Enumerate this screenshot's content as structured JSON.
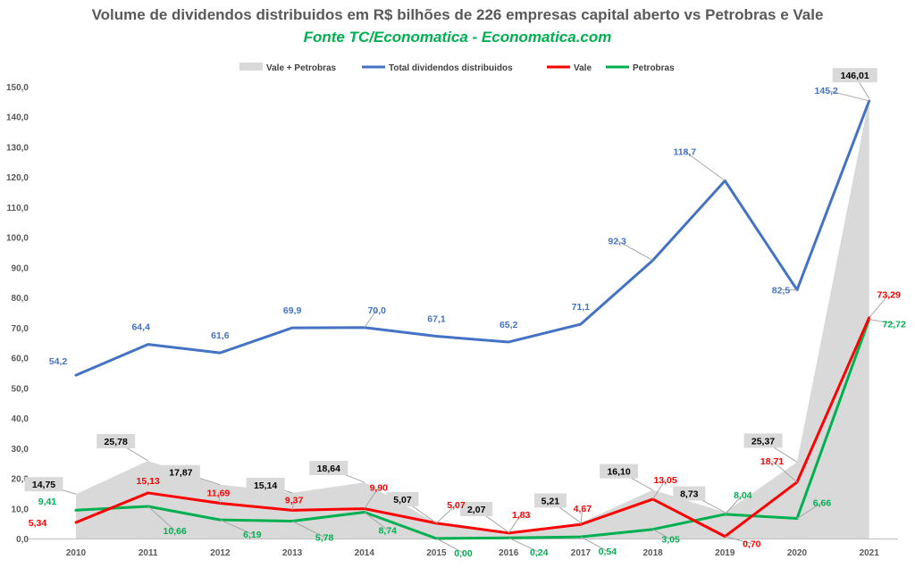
{
  "title": "Volume de dividendos distribuidos em R$ bilhões de 226 empresas capital aberto vs Petrobras e Vale",
  "subtitle": "Fonte TC/Economatica - Economatica.com",
  "colors": {
    "vale_petrobras": "#d9d9d9",
    "total": "#4472c4",
    "vale": "#ff0000",
    "petrobras": "#00b050"
  },
  "chart_data": {
    "type": "line",
    "x": [
      "2010",
      "2011",
      "2012",
      "2013",
      "2014",
      "2015",
      "2016",
      "2017",
      "2018",
      "2019",
      "2020",
      "2021"
    ],
    "y_ticks": [
      "0,0",
      "10,0",
      "20,0",
      "30,0",
      "40,0",
      "50,0",
      "60,0",
      "70,0",
      "80,0",
      "90,0",
      "100,0",
      "110,0",
      "120,0",
      "130,0",
      "140,0",
      "150,0"
    ],
    "ylim": [
      0,
      155
    ],
    "grid": false,
    "legend_position": "top",
    "series": [
      {
        "name": "Vale + Petrobras",
        "kind": "area",
        "values": [
          14.75,
          25.78,
          17.87,
          15.14,
          18.64,
          5.07,
          2.07,
          5.21,
          16.1,
          8.73,
          25.37,
          146.01
        ],
        "labels": [
          "14,75",
          "25,78",
          "17,87",
          "15,14",
          "18,64",
          "5,07",
          "2,07",
          "5,21",
          "16,10",
          "8,73",
          "25,37",
          "146,01"
        ]
      },
      {
        "name": "Total dividendos distribuidos",
        "kind": "line",
        "values": [
          54.2,
          64.4,
          61.6,
          69.9,
          70.0,
          67.1,
          65.2,
          71.1,
          92.3,
          118.7,
          82.5,
          145.2
        ],
        "labels": [
          "54,2",
          "64,4",
          "61,6",
          "69,9",
          "70,0",
          "67,1",
          "65,2",
          "71,1",
          "92,3",
          "118,7",
          "82,5",
          "145,2"
        ]
      },
      {
        "name": "Vale",
        "kind": "line",
        "values": [
          5.34,
          15.13,
          11.69,
          9.37,
          9.9,
          5.07,
          1.83,
          4.67,
          13.05,
          0.7,
          18.71,
          73.29
        ],
        "labels": [
          "5,34",
          "15,13",
          "11,69",
          "9,37",
          "9,90",
          "5,07",
          "1,83",
          "4,67",
          "13,05",
          "0,70",
          "18,71",
          "73,29"
        ]
      },
      {
        "name": "Petrobras",
        "kind": "line",
        "values": [
          9.41,
          10.66,
          6.19,
          5.78,
          8.74,
          0.0,
          0.24,
          0.54,
          3.05,
          8.04,
          6.66,
          72.72
        ],
        "labels": [
          "9,41",
          "10,66",
          "6,19",
          "5,78",
          "8,74",
          "0,00",
          "0,24",
          "0,54",
          "3,05",
          "8,04",
          "6,66",
          "72,72"
        ]
      }
    ]
  }
}
